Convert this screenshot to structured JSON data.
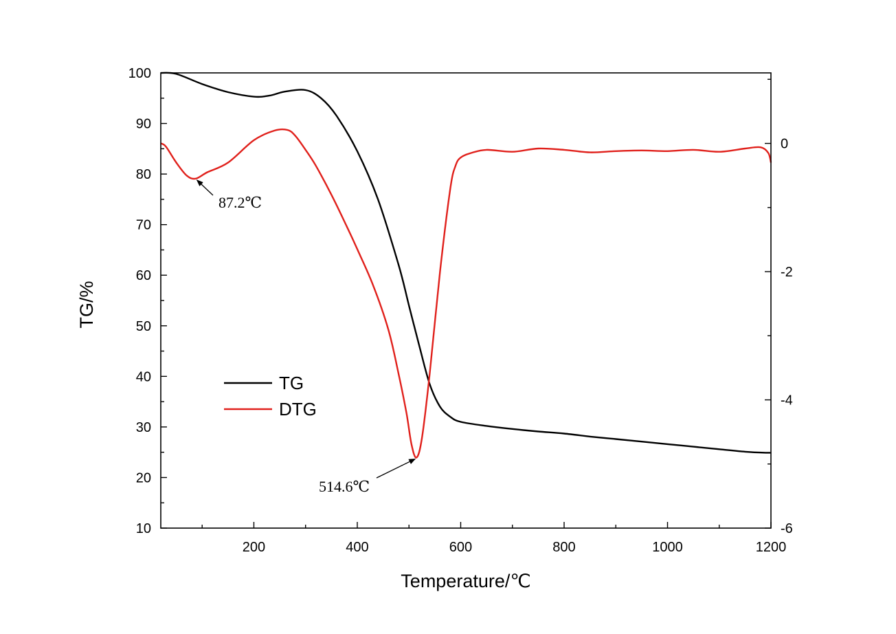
{
  "chart_data": {
    "type": "line",
    "xlabel": "Temperature/℃",
    "ylabel": "TG/%",
    "y2label": "",
    "xlim": [
      20,
      1200
    ],
    "ylim": [
      10,
      100
    ],
    "y2lim": [
      -6,
      1.1
    ],
    "x_ticks": [
      200,
      400,
      600,
      800,
      1000,
      1200
    ],
    "y_ticks": [
      10,
      20,
      30,
      40,
      50,
      60,
      70,
      80,
      90,
      100
    ],
    "y2_ticks": [
      -6,
      -4,
      -2,
      0
    ],
    "colors": {
      "TG": "#000000",
      "DTG": "#e0201b"
    },
    "legend_position": "center-left",
    "series": [
      {
        "name": "TG",
        "axis": "left",
        "x": [
          20,
          50,
          100,
          150,
          200,
          230,
          260,
          300,
          330,
          360,
          400,
          440,
          480,
          500,
          520,
          540,
          560,
          580,
          600,
          650,
          700,
          750,
          800,
          850,
          900,
          950,
          1000,
          1050,
          1100,
          1150,
          1190,
          1200
        ],
        "y": [
          100.0,
          99.8,
          97.8,
          96.2,
          95.3,
          95.5,
          96.3,
          96.6,
          95.0,
          91.5,
          84.5,
          75.0,
          62.0,
          54.0,
          46.0,
          38.5,
          34.0,
          32.0,
          31.0,
          30.2,
          29.6,
          29.1,
          28.7,
          28.1,
          27.6,
          27.1,
          26.6,
          26.1,
          25.6,
          25.1,
          24.9,
          24.9
        ]
      },
      {
        "name": "DTG",
        "axis": "right",
        "x": [
          20,
          30,
          50,
          70,
          87.2,
          110,
          150,
          200,
          240,
          265,
          280,
          300,
          320,
          350,
          380,
          400,
          430,
          460,
          480,
          495,
          505,
          514.6,
          525,
          540,
          560,
          580,
          590,
          600,
          620,
          650,
          700,
          750,
          800,
          850,
          900,
          950,
          1000,
          1050,
          1100,
          1150,
          1180,
          1195,
          1200
        ],
        "y": [
          0.0,
          -0.05,
          -0.3,
          -0.5,
          -0.55,
          -0.45,
          -0.3,
          0.05,
          0.2,
          0.21,
          0.12,
          -0.1,
          -0.35,
          -0.8,
          -1.3,
          -1.65,
          -2.2,
          -2.9,
          -3.6,
          -4.2,
          -4.7,
          -4.9,
          -4.6,
          -3.6,
          -2.0,
          -0.7,
          -0.35,
          -0.22,
          -0.15,
          -0.1,
          -0.13,
          -0.08,
          -0.1,
          -0.14,
          -0.12,
          -0.11,
          -0.12,
          -0.1,
          -0.13,
          -0.08,
          -0.06,
          -0.15,
          -0.3
        ]
      }
    ],
    "annotations": [
      {
        "text": "87.2℃",
        "x": 87.2,
        "y2": -0.55
      },
      {
        "text": "514.6℃",
        "x": 514.6,
        "y2": -4.9
      }
    ]
  }
}
